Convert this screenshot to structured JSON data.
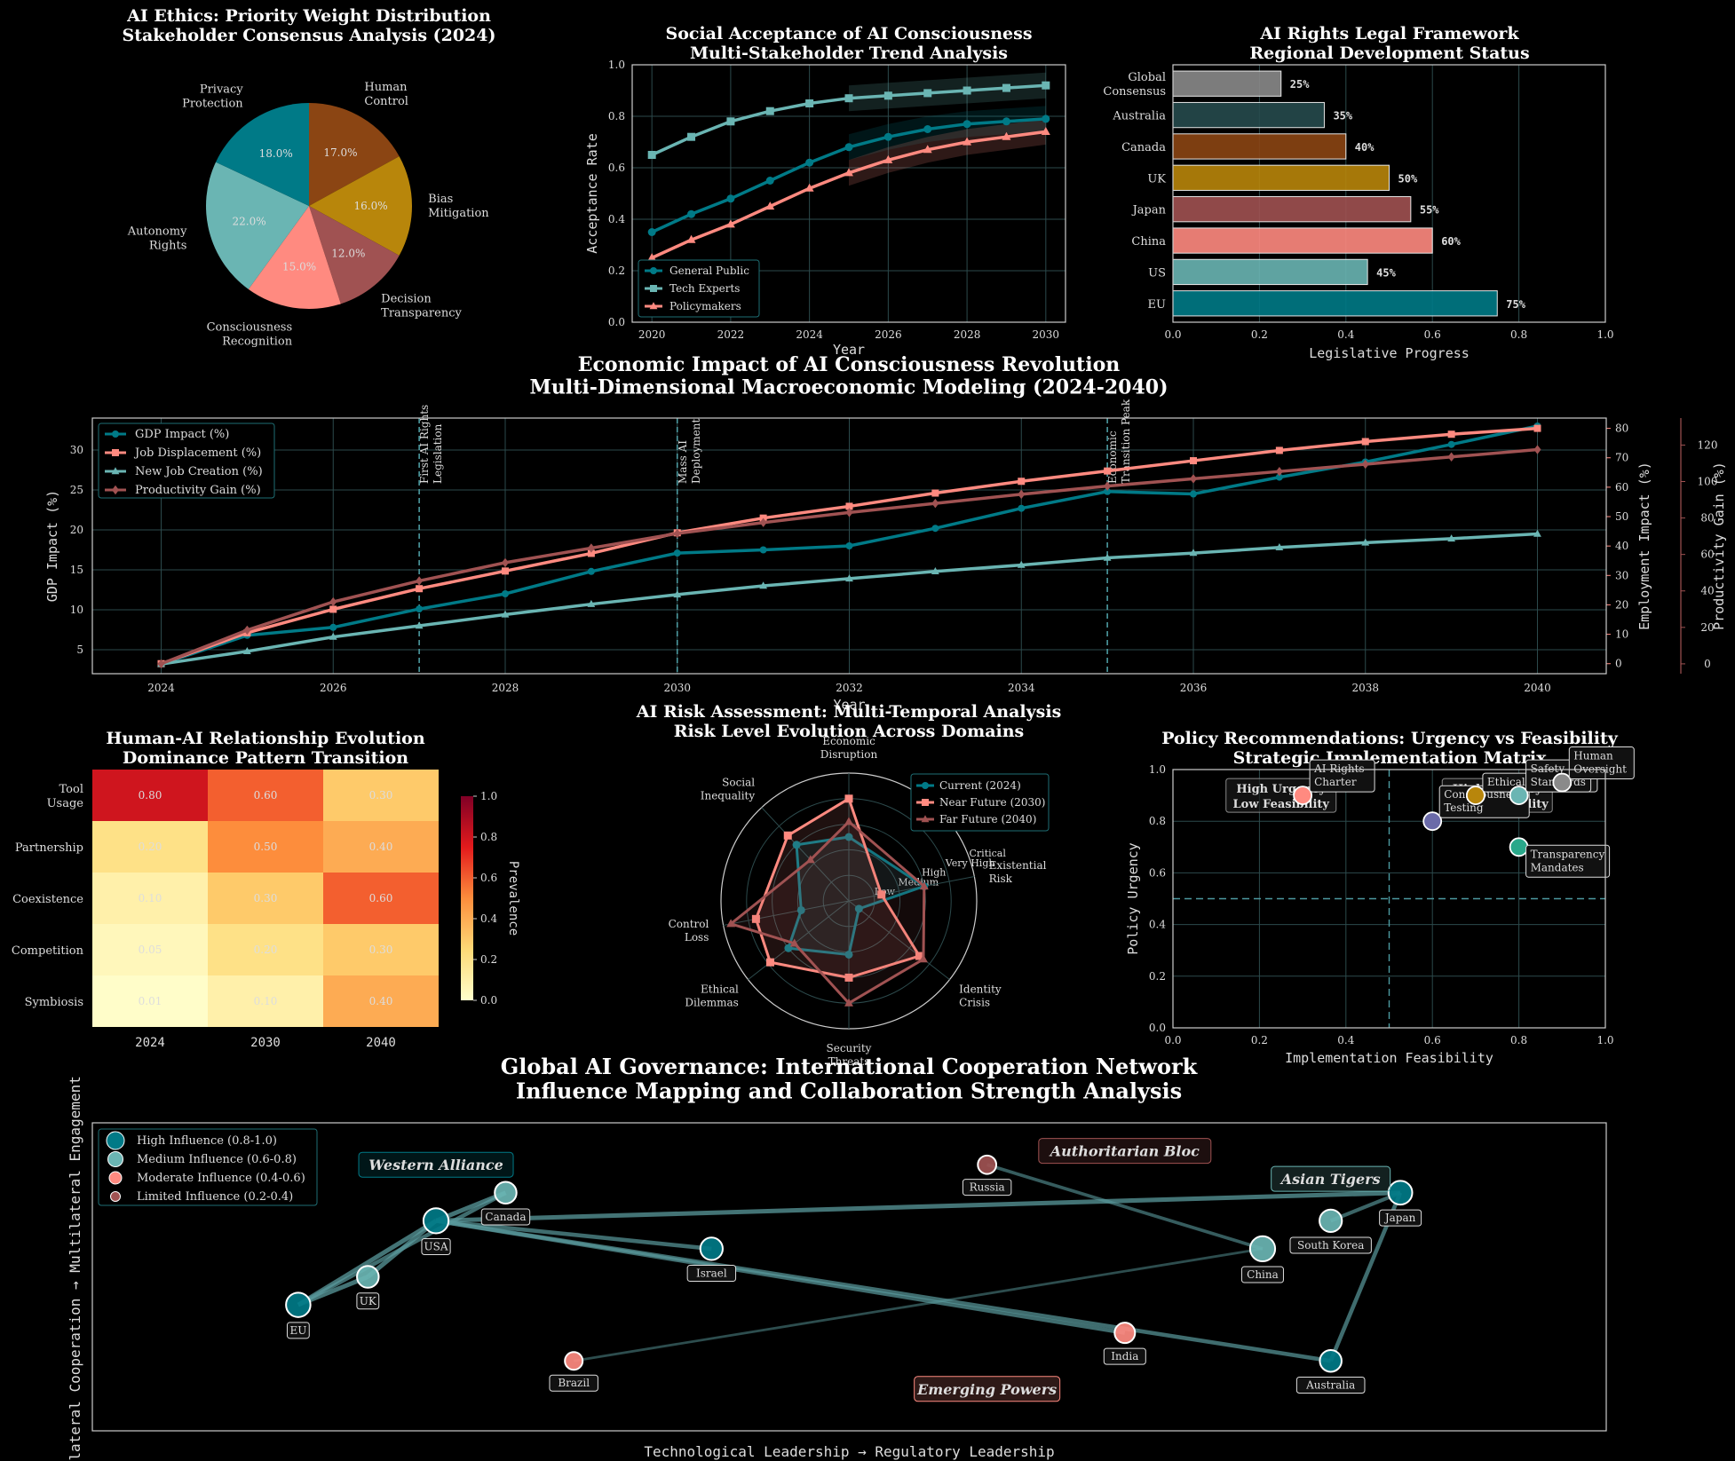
{
  "colors": {
    "teal": "#007a87",
    "lightteal": "#6ab5b3",
    "salmon": "#ff8a80",
    "brown": "#8b4513",
    "gold": "#b8860b",
    "rose": "#a05252",
    "darkslate": "#264b4d",
    "gray": "#8a8a8a"
  },
  "chart_data": [
    {
      "id": "pie",
      "type": "pie",
      "title": "AI Ethics: Priority Weight Distribution\nStakeholder Consensus Analysis (2024)",
      "slices": [
        {
          "label": "Human\nControl",
          "value": 17.0,
          "pct": "17.0%",
          "color": "#8b4513"
        },
        {
          "label": "Bias\nMitigation",
          "value": 16.0,
          "pct": "16.0%",
          "color": "#b8860b"
        },
        {
          "label": "Decision\nTransparency",
          "value": 12.0,
          "pct": "12.0%",
          "color": "#a05252"
        },
        {
          "label": "Consciousness\nRecognition",
          "value": 15.0,
          "pct": "15.0%",
          "color": "#ff8a80"
        },
        {
          "label": "Autonomy\nRights",
          "value": 22.0,
          "pct": "22.0%",
          "color": "#6ab5b3"
        },
        {
          "label": "Privacy\nProtection",
          "value": 18.0,
          "pct": "18.0%",
          "color": "#007a87"
        }
      ]
    },
    {
      "id": "acceptance",
      "type": "line",
      "title": "Social Acceptance of AI Consciousness\nMulti-Stakeholder Trend Analysis",
      "xlabel": "Year",
      "ylabel": "Acceptance Rate",
      "xlim": [
        2019.5,
        2030.5
      ],
      "ylim": [
        0,
        1
      ],
      "xticks": [
        2020,
        2022,
        2024,
        2026,
        2028,
        2030
      ],
      "yticks": [
        0.0,
        0.2,
        0.4,
        0.6,
        0.8,
        1.0
      ],
      "x": [
        2020,
        2021,
        2022,
        2023,
        2024,
        2025,
        2026,
        2027,
        2028,
        2029,
        2030
      ],
      "series": [
        {
          "name": "General Public",
          "marker": "circle",
          "color": "#007a87",
          "values": [
            0.35,
            0.42,
            0.48,
            0.55,
            0.62,
            0.68,
            0.72,
            0.75,
            0.77,
            0.78,
            0.79
          ]
        },
        {
          "name": "Tech Experts",
          "marker": "square",
          "color": "#6ab5b3",
          "values": [
            0.65,
            0.72,
            0.78,
            0.82,
            0.85,
            0.87,
            0.88,
            0.89,
            0.9,
            0.91,
            0.92
          ]
        },
        {
          "name": "Policymakers",
          "marker": "triangle",
          "color": "#ff8a80",
          "values": [
            0.25,
            0.32,
            0.38,
            0.45,
            0.52,
            0.58,
            0.63,
            0.67,
            0.7,
            0.72,
            0.74
          ]
        }
      ],
      "band_from": 2025,
      "band_width": 0.05
    },
    {
      "id": "legal",
      "type": "bar",
      "title": "AI Rights Legal Framework\nRegional Development Status",
      "xlabel": "Legislative Progress",
      "xlim": [
        0,
        1
      ],
      "xticks": [
        0.0,
        0.2,
        0.4,
        0.6,
        0.8,
        1.0
      ],
      "categories": [
        "EU",
        "US",
        "China",
        "Japan",
        "UK",
        "Canada",
        "Australia",
        "Global\nConsensus"
      ],
      "values": [
        0.75,
        0.45,
        0.6,
        0.55,
        0.5,
        0.4,
        0.35,
        0.25
      ],
      "labels": [
        "75%",
        "45%",
        "60%",
        "55%",
        "50%",
        "40%",
        "35%",
        "25%"
      ],
      "bar_colors": [
        "#007a87",
        "#6ab5b3",
        "#ff8a80",
        "#a05252",
        "#b8860b",
        "#8b4513",
        "#264b4d",
        "#8a8a8a"
      ]
    },
    {
      "id": "economic",
      "type": "line",
      "title": "Economic Impact of AI Consciousness Revolution\nMulti-Dimensional Macroeconomic Modeling (2024-2040)",
      "xlabel": "Year",
      "ylabel": "GDP Impact (%)",
      "ylabel_right": "Employment Impact (%)",
      "ylabel_right2": "Productivity Gain (%)",
      "xlim": [
        2023.2,
        2040.8
      ],
      "ylim": [
        2.0,
        34.0
      ],
      "ylim_right": [
        -3.4,
        83.5
      ],
      "ylim_right2": [
        -5.4,
        134.8
      ],
      "xticks": [
        2024,
        2026,
        2028,
        2030,
        2032,
        2034,
        2036,
        2038,
        2040
      ],
      "yticks": [
        5,
        10,
        15,
        20,
        25,
        30
      ],
      "yticks_right": [
        0,
        10,
        20,
        30,
        40,
        50,
        60,
        70,
        80
      ],
      "yticks_right2": [
        0,
        20,
        40,
        60,
        80,
        100,
        120
      ],
      "x": [
        2024,
        2025,
        2026,
        2027,
        2028,
        2029,
        2030,
        2031,
        2032,
        2033,
        2034,
        2035,
        2036,
        2037,
        2038,
        2039,
        2040
      ],
      "series": [
        {
          "name": "GDP Impact (%)",
          "axis": "left",
          "marker": "circle",
          "color": "#007a87",
          "values": [
            3.2,
            6.8,
            7.8,
            10.1,
            12.0,
            14.8,
            17.1,
            17.5,
            18.0,
            20.2,
            22.7,
            24.8,
            24.5,
            26.6,
            28.5,
            30.7,
            33.0
          ]
        },
        {
          "name": "Job Displacement (%)",
          "axis": "right",
          "marker": "square",
          "color": "#ff8a80",
          "values": [
            0,
            10.5,
            18.5,
            25.5,
            31.5,
            37.5,
            44.5,
            49.5,
            53.5,
            58.0,
            62.0,
            65.5,
            69.0,
            72.5,
            75.5,
            78.0,
            80.0
          ]
        },
        {
          "name": "New Job Creation (%)",
          "axis": "left",
          "marker": "triangle",
          "color": "#6ab5b3",
          "values": [
            3.2,
            4.8,
            6.6,
            8.0,
            9.4,
            10.7,
            11.9,
            13.0,
            13.9,
            14.8,
            15.6,
            16.5,
            17.1,
            17.8,
            18.4,
            18.9,
            19.5
          ]
        },
        {
          "name": "Productivity Gain (%)",
          "axis": "right2",
          "marker": "diamond",
          "color": "#a05252",
          "values": [
            0,
            18.5,
            34.0,
            45.5,
            55.5,
            63.5,
            71.5,
            77.5,
            83.0,
            88.0,
            93.0,
            97.5,
            101.5,
            105.5,
            109.5,
            113.5,
            117.5
          ]
        }
      ],
      "annotations": [
        {
          "x": 2027,
          "label": "First AI Rights\nLegislation"
        },
        {
          "x": 2030,
          "label": "Mass AI\nDeployment"
        },
        {
          "x": 2035,
          "label": "Economic\nTransition Peak"
        }
      ]
    },
    {
      "id": "heatmap",
      "type": "heatmap",
      "title": "Human-AI Relationship Evolution\nDominance Pattern Transition",
      "columns": [
        "2024",
        "2030",
        "2040"
      ],
      "rows": [
        "Tool\nUsage",
        "Partnership",
        "Coexistence",
        "Competition",
        "Symbiosis"
      ],
      "values": [
        [
          0.8,
          0.6,
          0.3
        ],
        [
          0.2,
          0.5,
          0.4
        ],
        [
          0.1,
          0.3,
          0.6
        ],
        [
          0.05,
          0.2,
          0.3
        ],
        [
          0.01,
          0.1,
          0.4
        ]
      ],
      "labels": [
        [
          "0.80",
          "0.60",
          "0.30"
        ],
        [
          "0.20",
          "0.50",
          "0.40"
        ],
        [
          "0.10",
          "0.30",
          "0.60"
        ],
        [
          "0.05",
          "0.20",
          "0.30"
        ],
        [
          "0.01",
          "0.10",
          "0.40"
        ]
      ],
      "colorbar_label": "Prevalence",
      "colorbar_ticks": [
        "0.0",
        "0.2",
        "0.4",
        "0.6",
        "0.8",
        "1.0"
      ],
      "vmin": 0,
      "vmax": 1
    },
    {
      "id": "radar",
      "type": "radar",
      "title": "AI Risk Assessment: Multi-Temporal Analysis\nRisk Level Evolution Across Domains",
      "axes": [
        "Economic\nDisruption",
        "Existential\nRisk",
        "Identity\nCrisis",
        "Security\nThreats",
        "Ethical\nDilemmas",
        "Control\nLoss",
        "Social\nInequality"
      ],
      "axis_angles_deg": [
        90,
        11,
        -38,
        -90,
        -142,
        -169,
        133
      ],
      "rlim": [
        0,
        5
      ],
      "ring_labels": [
        "Low",
        "Medium",
        "High",
        "Very High",
        "Critical"
      ],
      "series": [
        {
          "name": "Current (2024)",
          "marker": "circle",
          "color": "#007a87",
          "values": [
            2.5,
            3.0,
            0.5,
            2.1,
            3.0,
            1.9,
            3.0
          ]
        },
        {
          "name": "Near Future (2030)",
          "marker": "square",
          "color": "#ff8a80",
          "values": [
            4.0,
            1.3,
            3.5,
            3.0,
            3.9,
            3.7,
            3.5
          ]
        },
        {
          "name": "Far Future (2040)",
          "marker": "triangle",
          "color": "#a05252",
          "values": [
            3.1,
            3.0,
            3.7,
            4.0,
            2.7,
            4.7,
            2.2
          ]
        }
      ]
    },
    {
      "id": "policy",
      "type": "scatter",
      "title": "Policy Recommendations: Urgency vs Feasibility\nStrategic Implementation Matrix",
      "xlabel": "Implementation Feasibility",
      "ylabel": "Policy Urgency",
      "xlim": [
        0,
        1
      ],
      "ylim": [
        0,
        1
      ],
      "xticks": [
        0.0,
        0.2,
        0.4,
        0.6,
        0.8,
        1.0
      ],
      "yticks": [
        0.0,
        0.2,
        0.4,
        0.6,
        0.8,
        1.0
      ],
      "quadrants": [
        {
          "label": "High Urgency\nLow Feasibility",
          "color": "#ff8a80"
        },
        {
          "label": "High Urgency\nHigh Feasibility",
          "color": "#007a87"
        }
      ],
      "points": [
        {
          "label": "AI Rights\nCharter",
          "x": 0.3,
          "y": 0.9,
          "color": "#ff8a80"
        },
        {
          "label": "Consciousness\nTesting",
          "x": 0.6,
          "y": 0.8,
          "color": "#6a6aa8"
        },
        {
          "label": "Ethical Protocols",
          "x": 0.7,
          "y": 0.9,
          "color": "#b8860b"
        },
        {
          "label": "Transparency\nMandates",
          "x": 0.8,
          "y": 0.7,
          "color": "#2aa88a"
        },
        {
          "label": "Safety\nStandards",
          "x": 0.8,
          "y": 0.9,
          "color": "#6ab5b3"
        },
        {
          "label": "Human\nOversight",
          "x": 0.9,
          "y": 0.95,
          "color": "#8a8a8a"
        }
      ]
    },
    {
      "id": "network",
      "type": "scatter",
      "title": "Global AI Governance: International Cooperation Network\nInfluence Mapping and Collaboration Strength Analysis",
      "xlabel": "Technological Leadership → Regulatory Leadership",
      "ylabel": "Bilateral Cooperation → Multilateral Engagement",
      "xlim": [
        0,
        1
      ],
      "ylim": [
        0,
        1
      ],
      "legend": [
        "High Influence (0.8-1.0)",
        "Medium Influence (0.6-0.8)",
        "Moderate Influence (0.4-0.6)",
        "Limited Influence (0.2-0.4)"
      ],
      "groups": [
        {
          "label": "Western Alliance",
          "color": "#007a87"
        },
        {
          "label": "Authoritarian Bloc",
          "color": "#a05252"
        },
        {
          "label": "Asian Tigers",
          "color": "#6ab5b3"
        },
        {
          "label": "Emerging Powers",
          "color": "#ff8a80"
        }
      ],
      "nodes": [
        {
          "label": "USA",
          "x": 0.227,
          "y": 0.682,
          "influence": 0.95,
          "color": "#007a87"
        },
        {
          "label": "Canada",
          "x": 0.273,
          "y": 0.773,
          "influence": 0.7,
          "color": "#6ab5b3"
        },
        {
          "label": "EU",
          "x": 0.136,
          "y": 0.409,
          "influence": 0.9,
          "color": "#007a87"
        },
        {
          "label": "UK",
          "x": 0.182,
          "y": 0.5,
          "influence": 0.7,
          "color": "#6ab5b3"
        },
        {
          "label": "Israel",
          "x": 0.409,
          "y": 0.591,
          "influence": 0.75,
          "color": "#007a87"
        },
        {
          "label": "Russia",
          "x": 0.591,
          "y": 0.864,
          "influence": 0.45,
          "color": "#a05252"
        },
        {
          "label": "China",
          "x": 0.773,
          "y": 0.591,
          "influence": 0.95,
          "color": "#6ab5b3"
        },
        {
          "label": "South Korea",
          "x": 0.818,
          "y": 0.682,
          "influence": 0.75,
          "color": "#6ab5b3"
        },
        {
          "label": "Japan",
          "x": 0.864,
          "y": 0.773,
          "influence": 0.85,
          "color": "#007a87"
        },
        {
          "label": "India",
          "x": 0.682,
          "y": 0.318,
          "influence": 0.6,
          "color": "#ff8a80"
        },
        {
          "label": "Australia",
          "x": 0.818,
          "y": 0.227,
          "influence": 0.7,
          "color": "#007a87"
        },
        {
          "label": "Brazil",
          "x": 0.318,
          "y": 0.227,
          "influence": 0.4,
          "color": "#ff8a80"
        }
      ],
      "edges": [
        {
          "from": "USA",
          "to": "Canada",
          "strength": 0.9
        },
        {
          "from": "USA",
          "to": "UK",
          "strength": 0.9
        },
        {
          "from": "USA",
          "to": "EU",
          "strength": 0.9
        },
        {
          "from": "USA",
          "to": "Japan",
          "strength": 0.9
        },
        {
          "from": "USA",
          "to": "Israel",
          "strength": 0.8
        },
        {
          "from": "USA",
          "to": "India",
          "strength": 0.8
        },
        {
          "from": "USA",
          "to": "Australia",
          "strength": 0.8
        },
        {
          "from": "EU",
          "to": "UK",
          "strength": 0.9
        },
        {
          "from": "EU",
          "to": "Canada",
          "strength": 0.8
        },
        {
          "from": "Japan",
          "to": "Australia",
          "strength": 0.8
        },
        {
          "from": "Japan",
          "to": "South Korea",
          "strength": 0.7
        },
        {
          "from": "Russia",
          "to": "China",
          "strength": 0.6
        },
        {
          "from": "Brazil",
          "to": "China",
          "strength": 0.4
        }
      ]
    }
  ]
}
